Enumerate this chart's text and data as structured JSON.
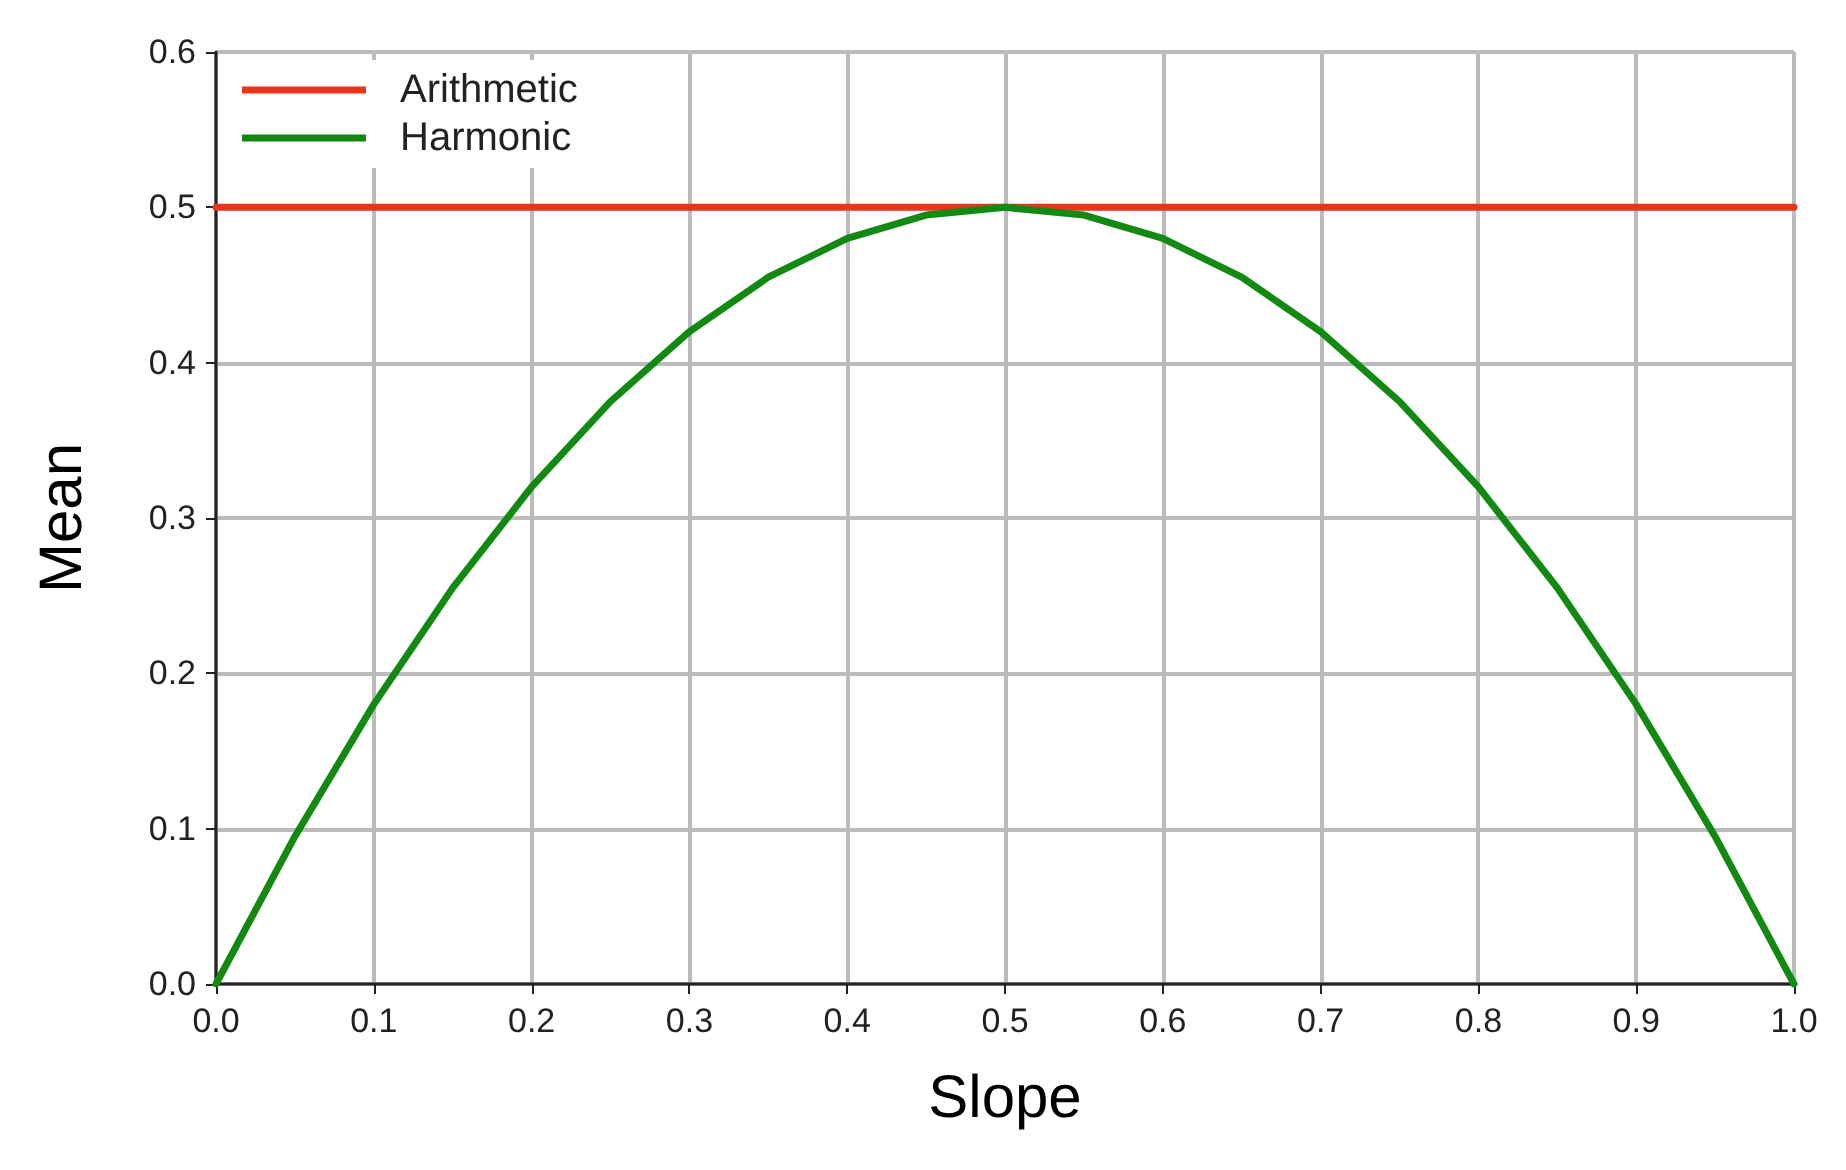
{
  "chart_data": {
    "type": "line",
    "xlabel": "Slope",
    "ylabel": "Mean",
    "xlim": [
      0,
      1
    ],
    "ylim": [
      0,
      0.6
    ],
    "xticks": [
      {
        "value": 0,
        "label": "0.0"
      },
      {
        "value": 0.1,
        "label": "0.1"
      },
      {
        "value": 0.2,
        "label": "0.2"
      },
      {
        "value": 0.3,
        "label": "0.3"
      },
      {
        "value": 0.4,
        "label": "0.4"
      },
      {
        "value": 0.5,
        "label": "0.5"
      },
      {
        "value": 0.6,
        "label": "0.6"
      },
      {
        "value": 0.7,
        "label": "0.7"
      },
      {
        "value": 0.8,
        "label": "0.8"
      },
      {
        "value": 0.9,
        "label": "0.9"
      },
      {
        "value": 1,
        "label": "1.0"
      }
    ],
    "yticks": [
      {
        "value": 0,
        "label": "0.0"
      },
      {
        "value": 0.1,
        "label": "0.1"
      },
      {
        "value": 0.2,
        "label": "0.2"
      },
      {
        "value": 0.3,
        "label": "0.3"
      },
      {
        "value": 0.4,
        "label": "0.4"
      },
      {
        "value": 0.5,
        "label": "0.5"
      },
      {
        "value": 0.6,
        "label": "0.6"
      }
    ],
    "series": [
      {
        "name": "Arithmetic",
        "color": "#e8351e",
        "x": [
          0,
          1
        ],
        "values": [
          0.5,
          0.5
        ]
      },
      {
        "name": "Harmonic",
        "color": "#128a12",
        "x": [
          0,
          0.05,
          0.1,
          0.15,
          0.2,
          0.25,
          0.3,
          0.35,
          0.4,
          0.45,
          0.5,
          0.55,
          0.6,
          0.65,
          0.7,
          0.75,
          0.8,
          0.85,
          0.9,
          0.95,
          1
        ],
        "values": [
          0,
          0.095,
          0.18,
          0.255,
          0.32,
          0.375,
          0.42,
          0.455,
          0.48,
          0.495,
          0.5,
          0.495,
          0.48,
          0.455,
          0.42,
          0.375,
          0.32,
          0.255,
          0.18,
          0.095,
          0
        ]
      }
    ],
    "grid": true,
    "legend": "top left",
    "marker": "none",
    "line_style": "solid"
  }
}
